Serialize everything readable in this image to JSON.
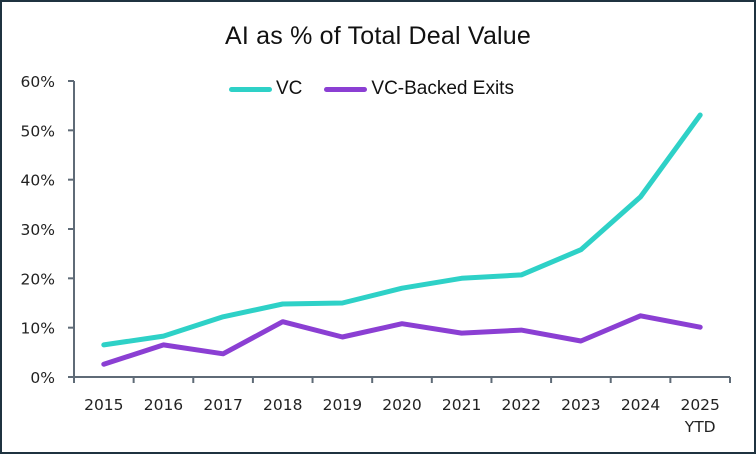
{
  "chart_data": {
    "type": "line",
    "title": "AI as % of Total Deal Value",
    "xlabel": "",
    "ylabel": "",
    "categories": [
      "2015",
      "2016",
      "2017",
      "2018",
      "2019",
      "2020",
      "2021",
      "2022",
      "2023",
      "2024",
      "2025"
    ],
    "category_sublabels": [
      "",
      "",
      "",
      "",
      "",
      "",
      "",
      "",
      "",
      "",
      "YTD"
    ],
    "ylim": [
      0,
      60
    ],
    "yticks": [
      0,
      10,
      20,
      30,
      40,
      50,
      60
    ],
    "ytick_labels": [
      "0%",
      "10%",
      "20%",
      "30%",
      "40%",
      "50%",
      "60%"
    ],
    "grid": false,
    "legend_position": "top-center",
    "series": [
      {
        "name": "VC",
        "color": "#2ed1c7",
        "values": [
          6.5,
          8.3,
          12.2,
          14.8,
          15.0,
          18.0,
          20.0,
          20.7,
          25.8,
          36.5,
          53.1
        ]
      },
      {
        "name": "VC-Backed Exits",
        "color": "#8b3fd3",
        "values": [
          2.6,
          6.5,
          4.7,
          11.2,
          8.1,
          10.8,
          8.9,
          9.5,
          7.3,
          12.4,
          10.1
        ]
      }
    ]
  }
}
